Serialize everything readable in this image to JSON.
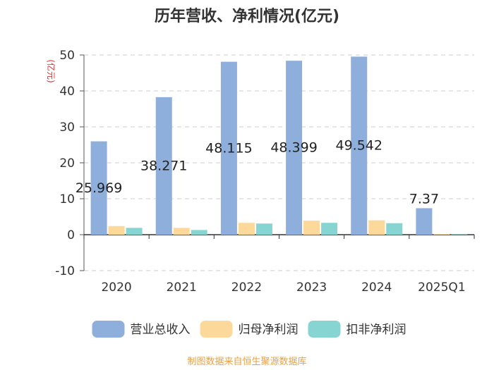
{
  "chart_data": {
    "type": "bar",
    "title": "历年营收、净利情况(亿元)",
    "ylabel": "(亿元)",
    "xlabel": "",
    "ylim": [
      -10,
      50
    ],
    "yticks": [
      -10,
      0,
      10,
      20,
      30,
      40,
      50
    ],
    "grid": true,
    "legend_position": "bottom",
    "categories": [
      "2020",
      "2021",
      "2022",
      "2023",
      "2024",
      "2025Q1"
    ],
    "series": [
      {
        "name": "营业总收入",
        "color": "#8eafdc",
        "values": [
          25.969,
          38.271,
          48.115,
          48.399,
          49.542,
          7.37
        ],
        "labels": [
          "25.969",
          "38.271",
          "48.115",
          "48.399",
          "49.542",
          "7.37"
        ]
      },
      {
        "name": "归母净利润",
        "color": "#fdd89b",
        "values": [
          2.4,
          1.9,
          3.3,
          3.9,
          4.0,
          0.15
        ]
      },
      {
        "name": "扣非净利润",
        "color": "#86d5d3",
        "values": [
          1.9,
          1.3,
          3.1,
          3.3,
          3.2,
          0.1
        ]
      }
    ]
  },
  "colors": {
    "unit_label": "#e03030",
    "source_text": "#e8a040",
    "grid": "#cccccc",
    "axis": "#555555"
  },
  "source": "制图数据来自恒生聚源数据库"
}
